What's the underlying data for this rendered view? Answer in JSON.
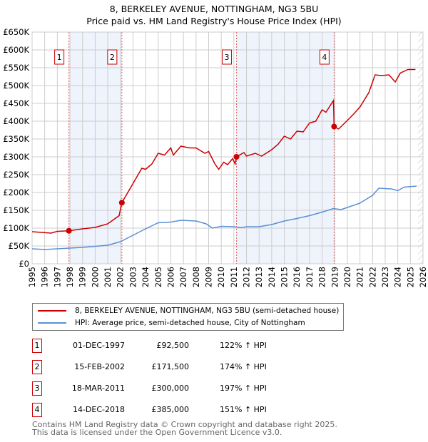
{
  "title": "8, BERKELEY AVENUE, NOTTINGHAM, NG3 5BU",
  "subtitle": "Price paid vs. HM Land Registry's House Price Index (HPI)",
  "chart_data": {
    "type": "line",
    "xlim": [
      1995,
      2026
    ],
    "ylim": [
      0,
      650000
    ],
    "yticks": [
      {
        "v": 0,
        "l": "£0"
      },
      {
        "v": 50000,
        "l": "£50K"
      },
      {
        "v": 100000,
        "l": "£100K"
      },
      {
        "v": 150000,
        "l": "£150K"
      },
      {
        "v": 200000,
        "l": "£200K"
      },
      {
        "v": 250000,
        "l": "£250K"
      },
      {
        "v": 300000,
        "l": "£300K"
      },
      {
        "v": 350000,
        "l": "£350K"
      },
      {
        "v": 400000,
        "l": "£400K"
      },
      {
        "v": 450000,
        "l": "£450K"
      },
      {
        "v": 500000,
        "l": "£500K"
      },
      {
        "v": 550000,
        "l": "£550K"
      },
      {
        "v": 600000,
        "l": "£600K"
      },
      {
        "v": 650000,
        "l": "£650K"
      }
    ],
    "xticks": [
      "1995",
      "1996",
      "1997",
      "1998",
      "1999",
      "2000",
      "2001",
      "2002",
      "2003",
      "2004",
      "2005",
      "2006",
      "2007",
      "2008",
      "2009",
      "2010",
      "2011",
      "2012",
      "2013",
      "2014",
      "2015",
      "2016",
      "2017",
      "2018",
      "2019",
      "2020",
      "2021",
      "2022",
      "2023",
      "2024",
      "2025",
      "2026"
    ],
    "shaded": [
      [
        1997.92,
        2002.12
      ],
      [
        2011.21,
        2018.95
      ]
    ],
    "hatch_from": 2025.6,
    "series": [
      {
        "name": "8, BERKELEY AVENUE, NOTTINGHAM, NG3 5BU (semi-detached house)",
        "color": "#cc0000",
        "x": [
          1995,
          1996.5,
          1997,
          1997.92,
          1999,
          2000,
          2001,
          2001.9,
          2002.12,
          2003,
          2003.7,
          2004,
          2004.5,
          2005,
          2005.5,
          2006,
          2006.2,
          2006.8,
          2007.5,
          2008,
          2008.7,
          2009,
          2009.5,
          2009.8,
          2010.2,
          2010.5,
          2010.9,
          2011.1,
          2011.21,
          2011.8,
          2012,
          2012.7,
          2013.2,
          2014,
          2014.5,
          2015,
          2015.5,
          2016,
          2016.5,
          2017,
          2017.5,
          2018,
          2018.3,
          2018.9,
          2018.95,
          2019.3,
          2019.8,
          2020.5,
          2021,
          2021.7,
          2022.2,
          2022.7,
          2023.3,
          2023.8,
          2024.2,
          2024.8,
          2025.4
        ],
        "y": [
          90000,
          86000,
          91000,
          92500,
          98000,
          102000,
          112000,
          135000,
          171500,
          225000,
          268000,
          265000,
          280000,
          310000,
          305000,
          325000,
          305000,
          330000,
          325000,
          325000,
          310000,
          315000,
          280000,
          265000,
          285000,
          278000,
          295000,
          280000,
          300000,
          312000,
          302000,
          310000,
          302000,
          320000,
          335000,
          358000,
          350000,
          372000,
          370000,
          395000,
          400000,
          432000,
          425000,
          458000,
          385000,
          378000,
          395000,
          420000,
          440000,
          480000,
          530000,
          528000,
          530000,
          510000,
          535000,
          545000,
          545000
        ]
      },
      {
        "name": "HPI: Average price, semi-detached house, City of Nottingham",
        "color": "#5b8fd4",
        "x": [
          1995,
          1996,
          1997,
          1998,
          1999,
          2000,
          2001,
          2002,
          2003,
          2004,
          2005,
          2006,
          2006.8,
          2008,
          2008.8,
          2009.3,
          2010,
          2011,
          2011.6,
          2012,
          2013,
          2014,
          2015,
          2016,
          2017,
          2018,
          2018.9,
          2019.5,
          2020,
          2021,
          2022,
          2022.5,
          2023.5,
          2024,
          2024.5,
          2025.5
        ],
        "y": [
          42000,
          40000,
          42000,
          44000,
          46000,
          49000,
          52000,
          62000,
          80000,
          98000,
          115000,
          117000,
          122000,
          120000,
          112000,
          100000,
          105000,
          104000,
          101000,
          104000,
          104000,
          110000,
          120000,
          127000,
          135000,
          145000,
          155000,
          152000,
          158000,
          170000,
          192000,
          212000,
          210000,
          205000,
          215000,
          218000
        ]
      }
    ],
    "sales": [
      {
        "n": "1",
        "x": 1997.92,
        "y": 92500
      },
      {
        "n": "2",
        "x": 2002.12,
        "y": 171500
      },
      {
        "n": "3",
        "x": 2011.21,
        "y": 300000
      },
      {
        "n": "4",
        "x": 2018.95,
        "y": 385000
      }
    ]
  },
  "legend": [
    "8, BERKELEY AVENUE, NOTTINGHAM, NG3 5BU (semi-detached house)",
    "HPI: Average price, semi-detached house, City of Nottingham"
  ],
  "transactions": [
    {
      "n": "1",
      "date": "01-DEC-1997",
      "price": "£92,500",
      "hpi": "122% ↑ HPI"
    },
    {
      "n": "2",
      "date": "15-FEB-2002",
      "price": "£171,500",
      "hpi": "174% ↑ HPI"
    },
    {
      "n": "3",
      "date": "18-MAR-2011",
      "price": "£300,000",
      "hpi": "197% ↑ HPI"
    },
    {
      "n": "4",
      "date": "14-DEC-2018",
      "price": "£385,000",
      "hpi": "151% ↑ HPI"
    }
  ],
  "footer": [
    "Contains HM Land Registry data © Crown copyright and database right 2025.",
    "This data is licensed under the Open Government Licence v3.0."
  ]
}
